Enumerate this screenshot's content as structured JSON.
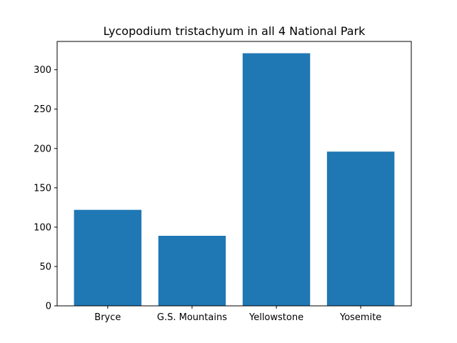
{
  "chart_data": {
    "type": "bar",
    "title": "Lycopodium tristachyum in all 4 National Park",
    "xlabel": "",
    "ylabel": "",
    "categories": [
      "Bryce",
      "G.S. Mountains",
      "Yellowstone",
      "Yosemite"
    ],
    "values": [
      122,
      89,
      321,
      196
    ],
    "ylim": [
      0,
      336
    ],
    "yticks": [
      0,
      50,
      100,
      150,
      200,
      250,
      300
    ],
    "grid": false,
    "bar_color": "#1f77b4"
  }
}
